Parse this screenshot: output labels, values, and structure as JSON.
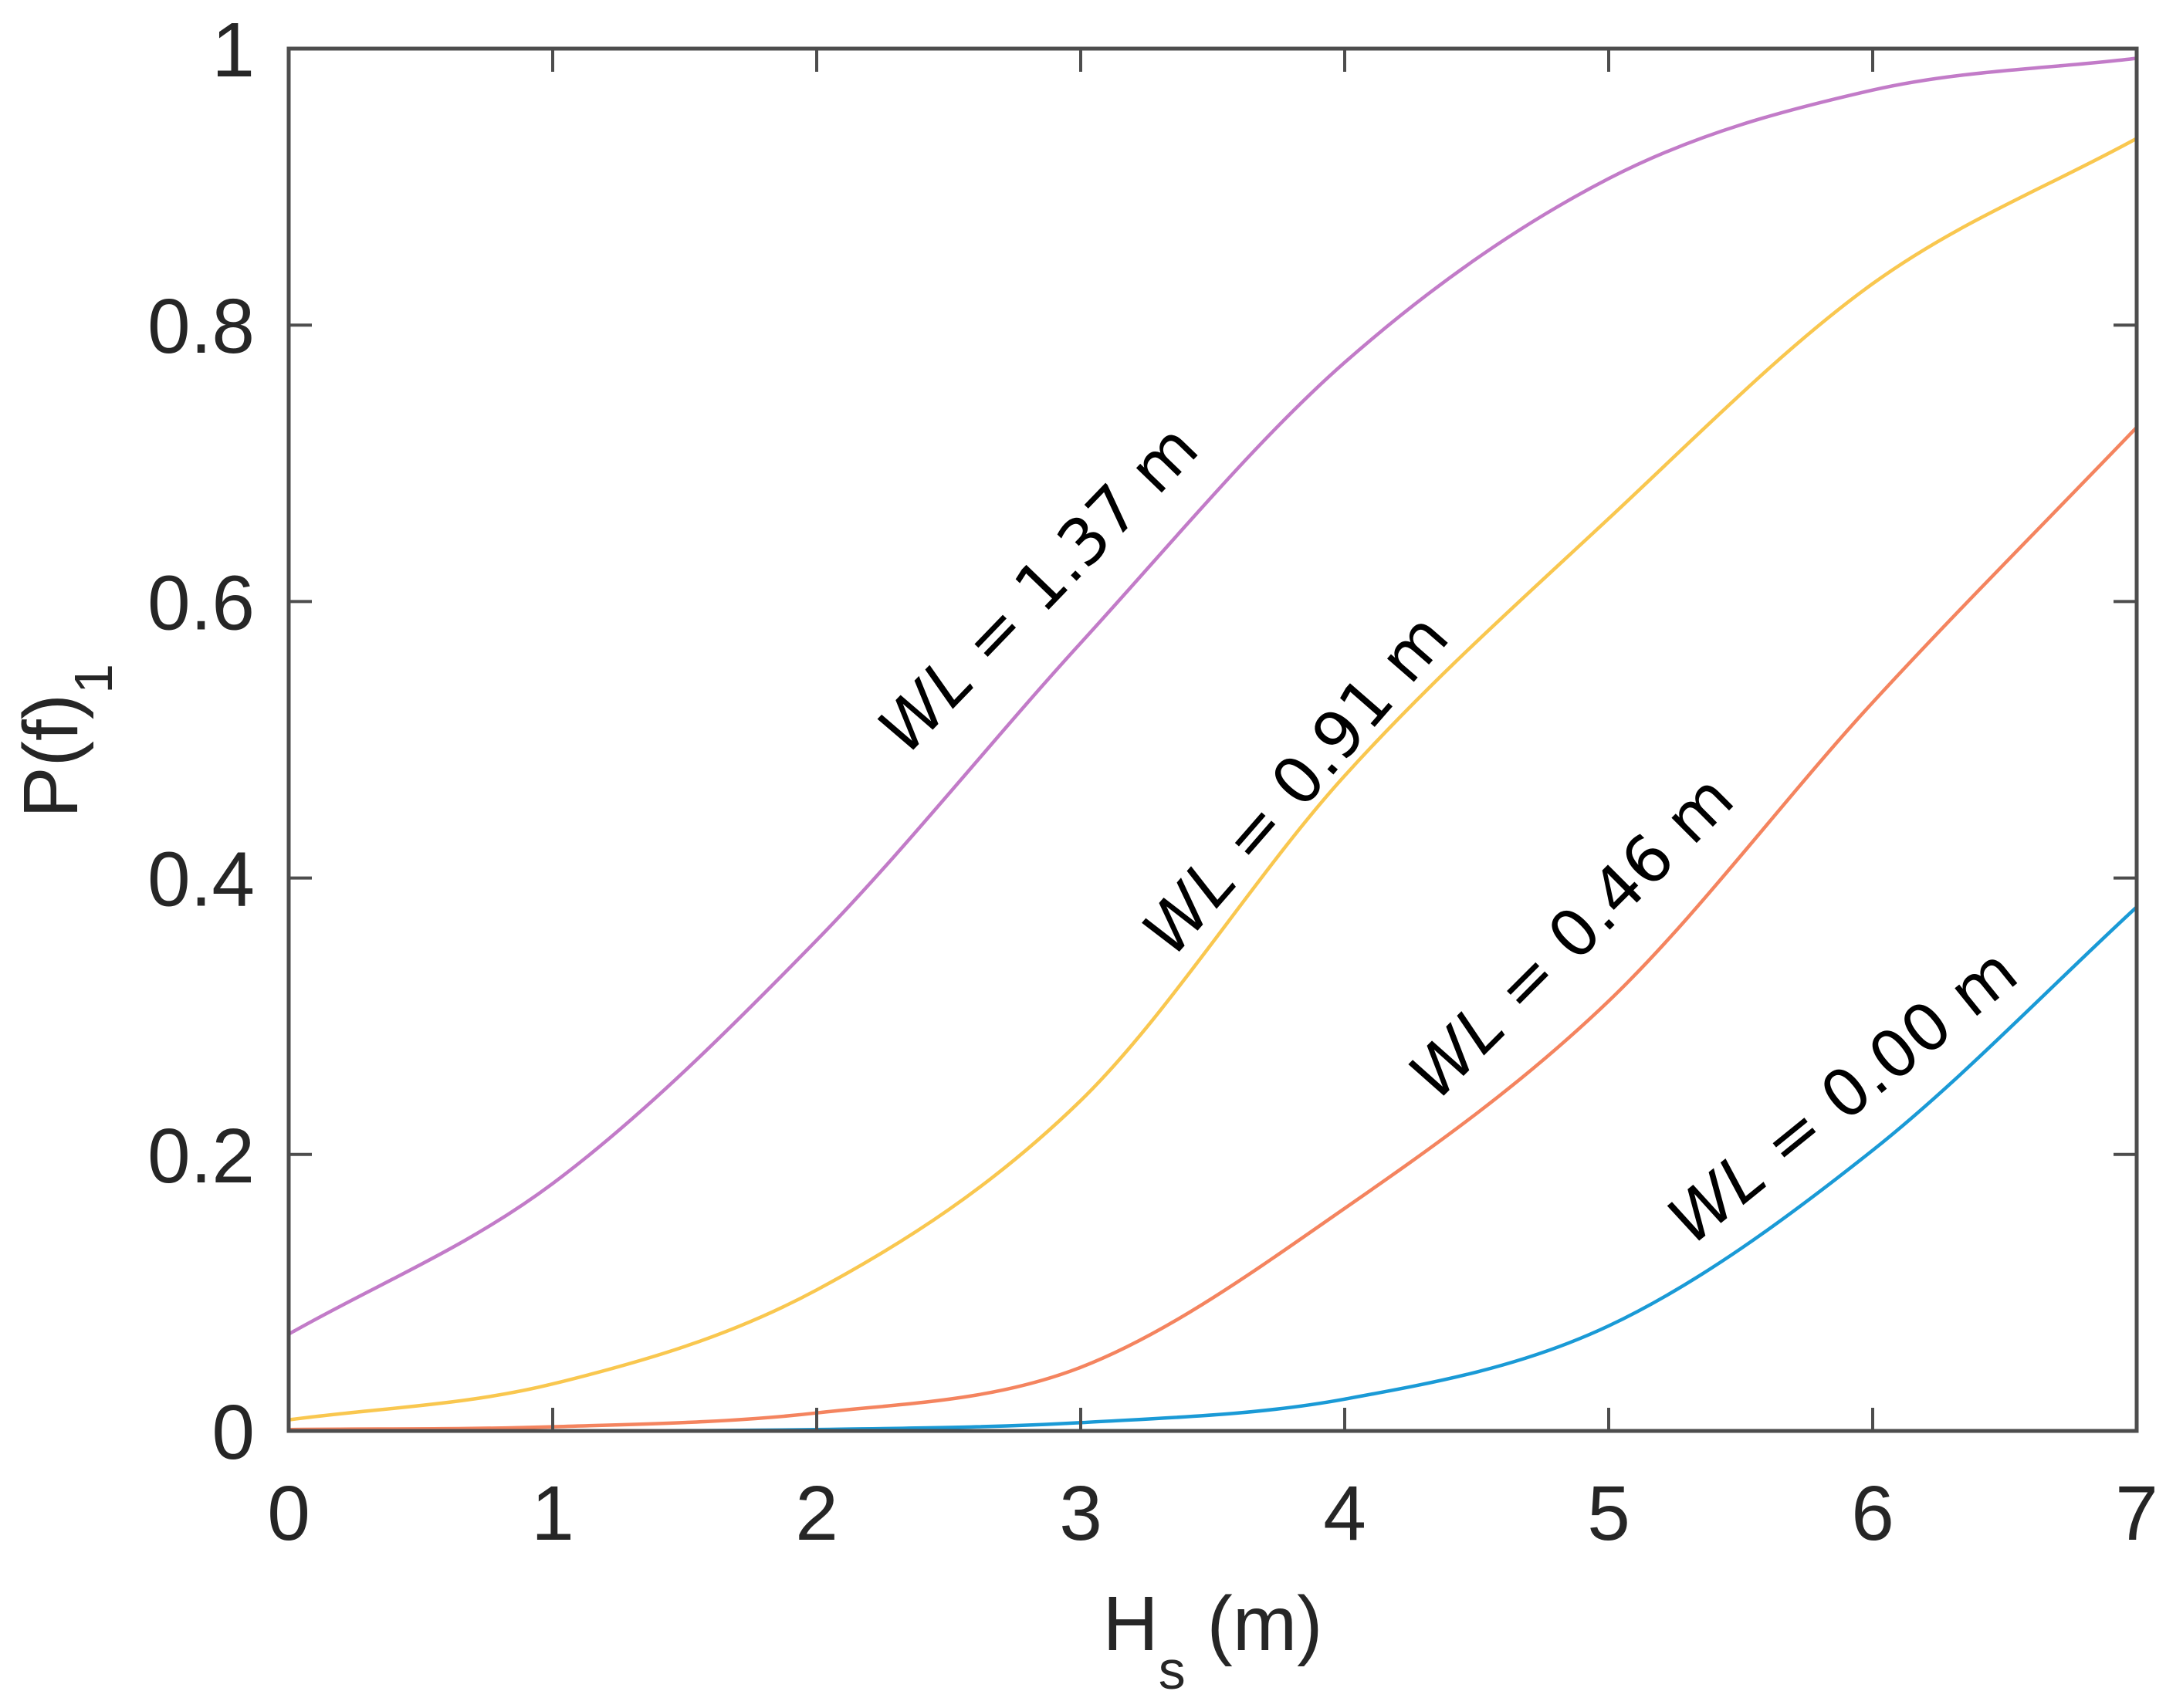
{
  "chart_data": {
    "type": "line",
    "title": "",
    "xlabel": "H",
    "xlabel_sub": "s",
    "xlabel_suffix": " (m)",
    "ylabel": "P(f)",
    "ylabel_sub": "1",
    "xlim": [
      0,
      7
    ],
    "ylim": [
      0,
      1
    ],
    "xticks": [
      "0",
      "1",
      "2",
      "3",
      "4",
      "5",
      "6",
      "7"
    ],
    "yticks": [
      "0",
      "0.2",
      "0.4",
      "0.6",
      "0.8",
      "1"
    ],
    "grid": false,
    "legend": "none (inline curve labels)",
    "x": [
      0,
      1,
      2,
      3,
      4,
      5,
      6,
      7
    ],
    "series": [
      {
        "name": "WL = 1.37 m",
        "label_prefix": "WL",
        "label_rest": " = 1.37 m",
        "color": "#C27BC8",
        "values": [
          0.07,
          0.179,
          0.355,
          0.57,
          0.773,
          0.906,
          0.97,
          0.993
        ]
      },
      {
        "name": "WL = 0.91 m",
        "label_prefix": "WL",
        "label_rest": " = 0.91 m",
        "color": "#F9C74F",
        "values": [
          0.008,
          0.034,
          0.102,
          0.239,
          0.474,
          0.66,
          0.83,
          0.935
        ]
      },
      {
        "name": "WL = 0.46 m",
        "label_prefix": "WL",
        "label_rest": " = 0.46 m",
        "color": "#F4845F",
        "values": [
          0.001,
          0.003,
          0.013,
          0.046,
          0.161,
          0.311,
          0.527,
          0.726
        ]
      },
      {
        "name": "WL = 0.00 m",
        "label_prefix": "WL",
        "label_rest": " = 0.00 m",
        "color": "#1A9AD6",
        "values": [
          0.0,
          0.0,
          0.001,
          0.006,
          0.023,
          0.076,
          0.203,
          0.379
        ]
      }
    ]
  }
}
